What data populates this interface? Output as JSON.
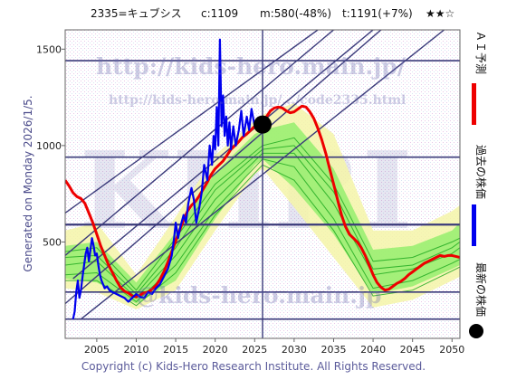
{
  "header": {
    "code_name": "2335=キュブシス",
    "current": "c:1109",
    "median": "m:580(-48%)",
    "target": "t:1191(+7%)",
    "rating": "★★☆"
  },
  "side_label": "Generated on Monday 2026/1/5.",
  "copyright": "Copyright (c) Kids-Hero Research Institute. All Rights Reserved.",
  "watermarks": {
    "big": "KHRI",
    "url1": "http://kids-hero.main.jp/",
    "url2": "http://kids-hero.main.jp/.../code2335.html",
    "url3": "@kids-hero.main.jp"
  },
  "legend": {
    "ai_forecast": "ＡＩ予測",
    "past_price": "過去の株価",
    "latest_price": "最新の株価"
  },
  "colors": {
    "ai_forecast": "#ee0000",
    "past_price": "#0000ee",
    "latest_price": "#000000",
    "band_yellow": "#f5f5a8",
    "band_green": "#88ee66",
    "scenario_green": "#22aa22",
    "guide_lines": "#3a3a7a"
  },
  "chart_data": {
    "type": "line",
    "x_ticks": [
      2005,
      2010,
      2015,
      2020,
      2025,
      2030,
      2035,
      2040,
      2045,
      2050
    ],
    "y_ticks": [
      500,
      1000,
      1500
    ],
    "xlim": [
      2001,
      2051
    ],
    "ylim": [
      0,
      1600
    ],
    "horizontal_levels": [
      100,
      240,
      590,
      940,
      1440
    ],
    "current_point": {
      "x": 2026.0,
      "y": 1109
    },
    "current_year": 2026.0,
    "diagonal_lines": [
      [
        [
          2003,
          100
        ],
        [
          2049,
          1600
        ]
      ],
      [
        [
          2001,
          180
        ],
        [
          2041,
          1600
        ]
      ],
      [
        [
          2002,
          310
        ],
        [
          2040,
          1600
        ]
      ],
      [
        [
          2001,
          430
        ],
        [
          2035,
          1600
        ]
      ],
      [
        [
          2001,
          650
        ],
        [
          2033,
          1600
        ]
      ]
    ],
    "series": [
      {
        "name": "ＡＩ予測",
        "values": [
          [
            2001.0,
            820
          ],
          [
            2001.5,
            790
          ],
          [
            2002.0,
            755
          ],
          [
            2002.5,
            735
          ],
          [
            2003.0,
            725
          ],
          [
            2003.5,
            700
          ],
          [
            2004.0,
            650
          ],
          [
            2004.5,
            600
          ],
          [
            2005.0,
            540
          ],
          [
            2005.5,
            480
          ],
          [
            2006.0,
            430
          ],
          [
            2006.5,
            380
          ],
          [
            2007.0,
            340
          ],
          [
            2007.5,
            300
          ],
          [
            2008.0,
            265
          ],
          [
            2008.5,
            245
          ],
          [
            2009.0,
            235
          ],
          [
            2009.5,
            220
          ],
          [
            2010.0,
            215
          ],
          [
            2010.5,
            225
          ],
          [
            2011.0,
            235
          ],
          [
            2011.5,
            240
          ],
          [
            2012.0,
            255
          ],
          [
            2012.5,
            275
          ],
          [
            2013.0,
            305
          ],
          [
            2013.5,
            345
          ],
          [
            2014.0,
            395
          ],
          [
            2014.5,
            450
          ],
          [
            2015.0,
            505
          ],
          [
            2015.5,
            560
          ],
          [
            2016.0,
            615
          ],
          [
            2016.5,
            660
          ],
          [
            2017.0,
            690
          ],
          [
            2017.5,
            710
          ],
          [
            2018.0,
            740
          ],
          [
            2018.5,
            775
          ],
          [
            2019.0,
            810
          ],
          [
            2019.5,
            850
          ],
          [
            2020.0,
            880
          ],
          [
            2020.5,
            900
          ],
          [
            2021.0,
            920
          ],
          [
            2021.5,
            950
          ],
          [
            2022.0,
            980
          ],
          [
            2022.5,
            1000
          ],
          [
            2023.0,
            1020
          ],
          [
            2023.5,
            1045
          ],
          [
            2024.0,
            1060
          ],
          [
            2024.5,
            1080
          ],
          [
            2025.0,
            1100
          ],
          [
            2025.5,
            1110
          ],
          [
            2026.0,
            1120
          ],
          [
            2026.5,
            1150
          ],
          [
            2027.0,
            1180
          ],
          [
            2027.5,
            1195
          ],
          [
            2028.0,
            1200
          ],
          [
            2028.5,
            1195
          ],
          [
            2029.0,
            1180
          ],
          [
            2029.5,
            1170
          ],
          [
            2030.0,
            1175
          ],
          [
            2030.5,
            1190
          ],
          [
            2031.0,
            1205
          ],
          [
            2031.5,
            1200
          ],
          [
            2032.0,
            1175
          ],
          [
            2032.5,
            1140
          ],
          [
            2033.0,
            1090
          ],
          [
            2033.5,
            1030
          ],
          [
            2034.0,
            960
          ],
          [
            2034.5,
            880
          ],
          [
            2035.0,
            800
          ],
          [
            2035.5,
            720
          ],
          [
            2036.0,
            640
          ],
          [
            2036.5,
            580
          ],
          [
            2037.0,
            540
          ],
          [
            2037.5,
            520
          ],
          [
            2038.0,
            500
          ],
          [
            2038.5,
            470
          ],
          [
            2039.0,
            430
          ],
          [
            2039.5,
            380
          ],
          [
            2040.0,
            330
          ],
          [
            2040.5,
            290
          ],
          [
            2041.0,
            265
          ],
          [
            2041.5,
            250
          ],
          [
            2042.0,
            255
          ],
          [
            2042.5,
            270
          ],
          [
            2043.0,
            285
          ],
          [
            2043.5,
            295
          ],
          [
            2044.0,
            310
          ],
          [
            2044.5,
            330
          ],
          [
            2045.0,
            345
          ],
          [
            2045.5,
            360
          ],
          [
            2046.0,
            375
          ],
          [
            2046.5,
            390
          ],
          [
            2047.0,
            400
          ],
          [
            2047.5,
            410
          ],
          [
            2048.0,
            420
          ],
          [
            2048.5,
            430
          ],
          [
            2049.0,
            425
          ],
          [
            2049.5,
            430
          ],
          [
            2050.0,
            430
          ],
          [
            2050.5,
            425
          ],
          [
            2051.0,
            420
          ]
        ]
      },
      {
        "name": "過去の株価",
        "values": [
          [
            2002.0,
            100
          ],
          [
            2002.2,
            140
          ],
          [
            2002.4,
            240
          ],
          [
            2002.6,
            300
          ],
          [
            2002.8,
            210
          ],
          [
            2003.0,
            250
          ],
          [
            2003.2,
            320
          ],
          [
            2003.4,
            380
          ],
          [
            2003.6,
            440
          ],
          [
            2003.8,
            470
          ],
          [
            2004.0,
            400
          ],
          [
            2004.2,
            460
          ],
          [
            2004.4,
            520
          ],
          [
            2004.6,
            480
          ],
          [
            2004.8,
            430
          ],
          [
            2005.0,
            440
          ],
          [
            2005.2,
            380
          ],
          [
            2005.4,
            330
          ],
          [
            2005.6,
            300
          ],
          [
            2005.8,
            280
          ],
          [
            2006.0,
            260
          ],
          [
            2006.3,
            270
          ],
          [
            2006.6,
            250
          ],
          [
            2007.0,
            240
          ],
          [
            2007.5,
            230
          ],
          [
            2008.0,
            220
          ],
          [
            2008.5,
            210
          ],
          [
            2009.0,
            190
          ],
          [
            2009.5,
            210
          ],
          [
            2010.0,
            230
          ],
          [
            2010.5,
            215
          ],
          [
            2011.0,
            210
          ],
          [
            2011.5,
            240
          ],
          [
            2012.0,
            230
          ],
          [
            2012.5,
            260
          ],
          [
            2013.0,
            280
          ],
          [
            2013.5,
            320
          ],
          [
            2014.0,
            360
          ],
          [
            2014.5,
            430
          ],
          [
            2014.8,
            520
          ],
          [
            2015.0,
            600
          ],
          [
            2015.3,
            520
          ],
          [
            2015.6,
            580
          ],
          [
            2016.0,
            640
          ],
          [
            2016.3,
            600
          ],
          [
            2016.6,
            700
          ],
          [
            2017.0,
            780
          ],
          [
            2017.3,
            720
          ],
          [
            2017.6,
            600
          ],
          [
            2018.0,
            680
          ],
          [
            2018.3,
            760
          ],
          [
            2018.6,
            900
          ],
          [
            2019.0,
            820
          ],
          [
            2019.3,
            1000
          ],
          [
            2019.6,
            900
          ],
          [
            2019.8,
            1050
          ],
          [
            2020.0,
            980
          ],
          [
            2020.2,
            1200
          ],
          [
            2020.4,
            1000
          ],
          [
            2020.6,
            1550
          ],
          [
            2020.8,
            1100
          ],
          [
            2021.0,
            1260
          ],
          [
            2021.2,
            1050
          ],
          [
            2021.4,
            1150
          ],
          [
            2021.6,
            1000
          ],
          [
            2021.8,
            1120
          ],
          [
            2022.0,
            980
          ],
          [
            2022.3,
            1100
          ],
          [
            2022.6,
            1000
          ],
          [
            2023.0,
            1080
          ],
          [
            2023.3,
            1180
          ],
          [
            2023.6,
            1050
          ],
          [
            2024.0,
            1150
          ],
          [
            2024.3,
            1080
          ],
          [
            2024.6,
            1190
          ],
          [
            2025.0,
            1100
          ],
          [
            2025.5,
            1120
          ],
          [
            2026.0,
            1109
          ]
        ]
      }
    ],
    "band_outer": {
      "x": [
        2001,
        2005,
        2010,
        2015,
        2020,
        2025,
        2026,
        2030,
        2035,
        2040,
        2045,
        2050,
        2051
      ],
      "upper": [
        560,
        600,
        330,
        630,
        950,
        1130,
        1160,
        1220,
        1060,
        560,
        560,
        660,
        690
      ],
      "lower": [
        260,
        240,
        150,
        250,
        560,
        850,
        880,
        680,
        420,
        160,
        200,
        300,
        320
      ]
    },
    "band_inner": {
      "x": [
        2001,
        2005,
        2010,
        2015,
        2020,
        2025,
        2026,
        2030,
        2035,
        2040,
        2045,
        2050,
        2051
      ],
      "upper": [
        480,
        500,
        290,
        550,
        860,
        1060,
        1080,
        1120,
        880,
        460,
        480,
        560,
        600
      ],
      "lower": [
        310,
        290,
        180,
        300,
        620,
        900,
        930,
        780,
        540,
        230,
        270,
        360,
        380
      ]
    },
    "scenarios": [
      {
        "x": [
          2001,
          2005,
          2010,
          2015,
          2020,
          2026,
          2030,
          2035,
          2040,
          2045,
          2050,
          2051
        ],
        "y": [
          450,
          470,
          250,
          520,
          800,
          1000,
          1040,
          800,
          400,
          420,
          500,
          520
        ]
      },
      {
        "x": [
          2001,
          2005,
          2010,
          2015,
          2020,
          2026,
          2030,
          2035,
          2040,
          2045,
          2050,
          2051
        ],
        "y": [
          380,
          400,
          210,
          430,
          720,
          960,
          960,
          700,
          330,
          360,
          440,
          470
        ]
      },
      {
        "x": [
          2001,
          2005,
          2010,
          2015,
          2020,
          2026,
          2030,
          2035,
          2040,
          2045,
          2050,
          2051
        ],
        "y": [
          330,
          340,
          190,
          380,
          670,
          930,
          890,
          620,
          260,
          300,
          390,
          410
        ]
      },
      {
        "x": [
          2001,
          2005,
          2010,
          2015,
          2020,
          2026,
          2030,
          2035,
          2040,
          2045,
          2050,
          2051
        ],
        "y": [
          300,
          300,
          170,
          340,
          640,
          900,
          820,
          560,
          220,
          250,
          350,
          370
        ]
      },
      {
        "x": [
          2001,
          2005,
          2010,
          2015,
          2020,
          2026,
          2030,
          2035,
          2040,
          2045,
          2050,
          2051
        ],
        "y": [
          420,
          430,
          230,
          470,
          770,
          980,
          1000,
          760,
          360,
          380,
          470,
          500
        ]
      }
    ]
  }
}
